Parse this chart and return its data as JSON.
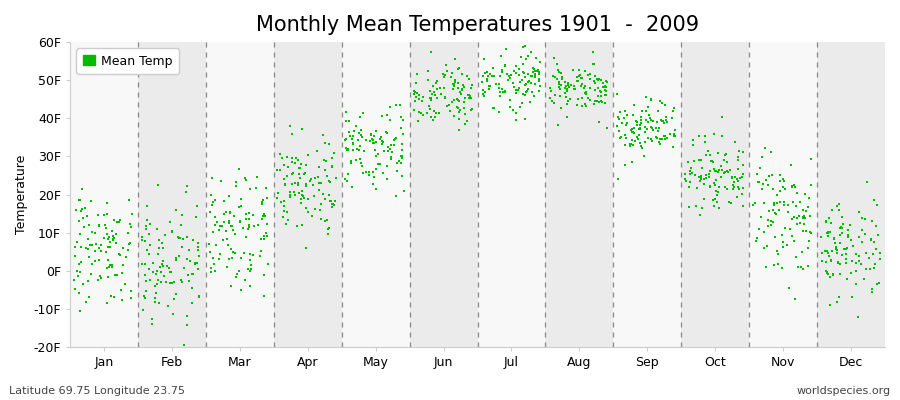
{
  "title": "Monthly Mean Temperatures 1901  -  2009",
  "ylabel": "Temperature",
  "ylim": [
    -20,
    60
  ],
  "yticks": [
    -20,
    -10,
    0,
    10,
    20,
    30,
    40,
    50,
    60
  ],
  "ytick_labels": [
    "-20F",
    "-10F",
    "0F",
    "10F",
    "20F",
    "30F",
    "40F",
    "50F",
    "60F"
  ],
  "month_labels": [
    "Jan",
    "Feb",
    "Mar",
    "Apr",
    "May",
    "Jun",
    "Jul",
    "Aug",
    "Sep",
    "Oct",
    "Nov",
    "Dec"
  ],
  "dot_color": "#00bb00",
  "legend_label": "Mean Temp",
  "bg_color": "#ffffff",
  "band_color_odd": "#ebebeb",
  "band_color_even": "#f8f8f8",
  "footer_left": "Latitude 69.75 Longitude 23.75",
  "footer_right": "worldspecies.org",
  "title_fontsize": 15,
  "axis_label_fontsize": 9,
  "tick_fontsize": 9,
  "monthly_means_F": [
    5.5,
    3.0,
    12.0,
    23.0,
    33.0,
    46.0,
    50.0,
    48.0,
    37.0,
    26.0,
    14.0,
    6.0
  ],
  "monthly_std_F": [
    7.0,
    8.5,
    7.5,
    6.0,
    5.5,
    4.5,
    4.0,
    3.5,
    4.0,
    5.5,
    7.0,
    7.0
  ],
  "n_years": 109,
  "dashed_line_color": "#888888",
  "spine_color": "#cccccc"
}
